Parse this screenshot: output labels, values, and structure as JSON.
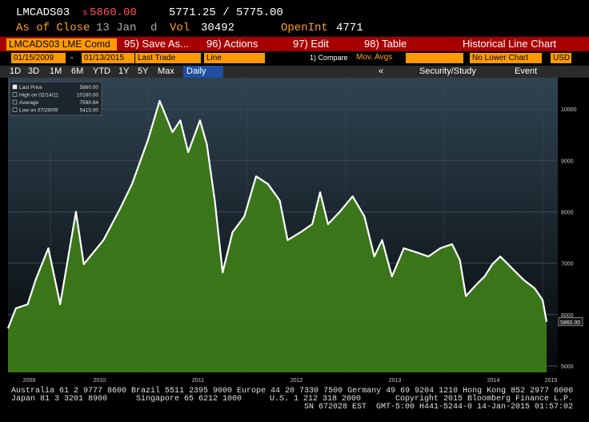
{
  "header": {
    "ticker": "LMCADS03",
    "price_prefix": "s",
    "price": "5860.00",
    "bid_ask": "5771.25 / 5775.00",
    "as_of": "As of Close",
    "date": "13 Jan",
    "d": "d",
    "vol_label": "Vol",
    "vol": "30492",
    "oi_label": "OpenInt",
    "oi": "4771"
  },
  "toolbar": {
    "security": "LMCADS03 LME Comd",
    "buttons": [
      "95) Save As...",
      "96) Actions",
      "97) Edit",
      "98) Table"
    ],
    "title": "Historical Line Chart"
  },
  "settings": {
    "start": "01/15/2009",
    "dash": "-",
    "end": "01/13/2015",
    "field": "Last Trade",
    "style": "Line",
    "compare": "1) Compare",
    "mov": "Mov. Avgs",
    "lower": "No Lower Chart",
    "currency": "USD"
  },
  "tabs": {
    "periods": [
      "1D",
      "3D",
      "1M",
      "6M",
      "YTD",
      "1Y",
      "5Y",
      "Max"
    ],
    "active": "Daily",
    "collapse": "«",
    "study": "Security/Study",
    "event": "Event"
  },
  "chart_data": {
    "type": "area",
    "line_color": "#ffffff",
    "fill_color": "#3d7a1a",
    "y_axis_side": "right",
    "grid": true,
    "x": [
      2009.57,
      2009.65,
      2009.77,
      2009.85,
      2009.98,
      2010.1,
      2010.26,
      2010.34,
      2010.54,
      2010.71,
      2010.83,
      2010.99,
      2011.11,
      2011.24,
      2011.32,
      2011.4,
      2011.52,
      2011.59,
      2011.67,
      2011.75,
      2011.85,
      2011.97,
      2012.09,
      2012.21,
      2012.33,
      2012.41,
      2012.54,
      2012.66,
      2012.74,
      2012.82,
      2012.94,
      2013.07,
      2013.19,
      2013.29,
      2013.37,
      2013.47,
      2013.59,
      2013.72,
      2013.84,
      2013.96,
      2014.08,
      2014.16,
      2014.22,
      2014.33,
      2014.41,
      2014.49,
      2014.57,
      2014.69,
      2014.81,
      2014.92,
      2015.0,
      2015.04
    ],
    "values": [
      5730,
      6120,
      6200,
      6670,
      7290,
      6200,
      8000,
      6980,
      7450,
      8070,
      8540,
      9390,
      10160,
      9550,
      9780,
      9160,
      9780,
      9310,
      8220,
      6820,
      7600,
      7910,
      8690,
      8540,
      8220,
      7450,
      7600,
      7760,
      8380,
      7760,
      8000,
      8300,
      7910,
      7130,
      7450,
      6740,
      7290,
      7210,
      7130,
      7290,
      7370,
      7060,
      6360,
      6590,
      6740,
      6980,
      7130,
      6900,
      6670,
      6510,
      6280,
      5860
    ],
    "xlim": [
      2009.57,
      2015.04
    ],
    "xticks": [
      2009,
      2010,
      2011,
      2012,
      2013,
      2014,
      2015
    ],
    "ylim": [
      4875,
      10610
    ],
    "yticks": [
      5000,
      6000,
      7000,
      8000,
      9000,
      10000
    ],
    "legend": [
      {
        "label": "Last Price",
        "value": "5860.00"
      },
      {
        "label": "High on 02/14/11",
        "value": "10160.00"
      },
      {
        "label": "Average",
        "value": "7590.94"
      },
      {
        "label": "Low on 07/29/09",
        "value": "5415.00"
      }
    ]
  },
  "footer": [
    "Australia 61 2 9777 8600 Brazil 5511 2395 9000 Europe 44 20 7330 7500 Germany 49 69 9204 1210 Hong Kong 852 2977 6000",
    "Japan 81 3 3201 8900",
    "Singapore 65 6212 1000",
    "U.S. 1 212 318 2000",
    "Copyright 2015 Bloomberg Finance L.P.",
    "SN 672028 EST  GMT-5:00 H441-5244-0 14-Jan-2015 01:57:02"
  ]
}
